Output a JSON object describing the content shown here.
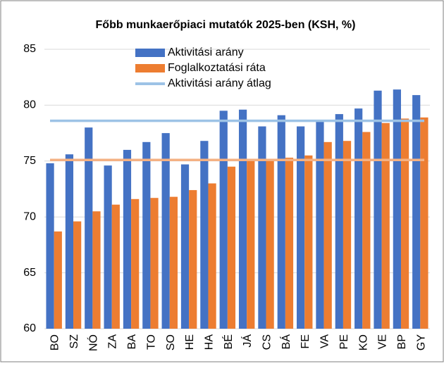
{
  "chart_data": {
    "type": "bar",
    "title": "Főbb munkaerőpiaci mutatók 2025-ben (KSH, %)",
    "categories": [
      "BO",
      "SZ",
      "NÓ",
      "ZA",
      "BA",
      "TO",
      "SO",
      "HE",
      "HA",
      "BÉ",
      "JÁ",
      "CS",
      "BÁ",
      "FE",
      "VA",
      "PE",
      "KO",
      "VE",
      "BP",
      "GY"
    ],
    "series": [
      {
        "name": "Aktivitási arány",
        "color": "#4472c4",
        "values": [
          74.8,
          75.6,
          78.0,
          74.6,
          76.0,
          76.7,
          77.5,
          74.7,
          76.8,
          79.5,
          79.6,
          78.1,
          79.1,
          78.1,
          78.6,
          79.2,
          79.7,
          81.3,
          81.4,
          80.9
        ]
      },
      {
        "name": "Foglalkoztatási ráta",
        "color": "#ed7d31",
        "values": [
          68.7,
          69.6,
          70.5,
          71.1,
          71.6,
          71.7,
          71.8,
          72.4,
          73.0,
          74.5,
          75.1,
          75.1,
          75.3,
          75.5,
          76.7,
          76.8,
          77.6,
          78.4,
          78.8,
          78.9
        ]
      }
    ],
    "ref_lines": [
      {
        "name": "Aktivitási arány átlag",
        "color": "#9dc3e6",
        "value": 78.6
      },
      {
        "color": "#f4b183",
        "value": 75.1
      }
    ],
    "ylim": [
      60,
      85
    ],
    "yticks": [
      60,
      65,
      70,
      75,
      80,
      85
    ],
    "grid": true,
    "legend": "top"
  }
}
